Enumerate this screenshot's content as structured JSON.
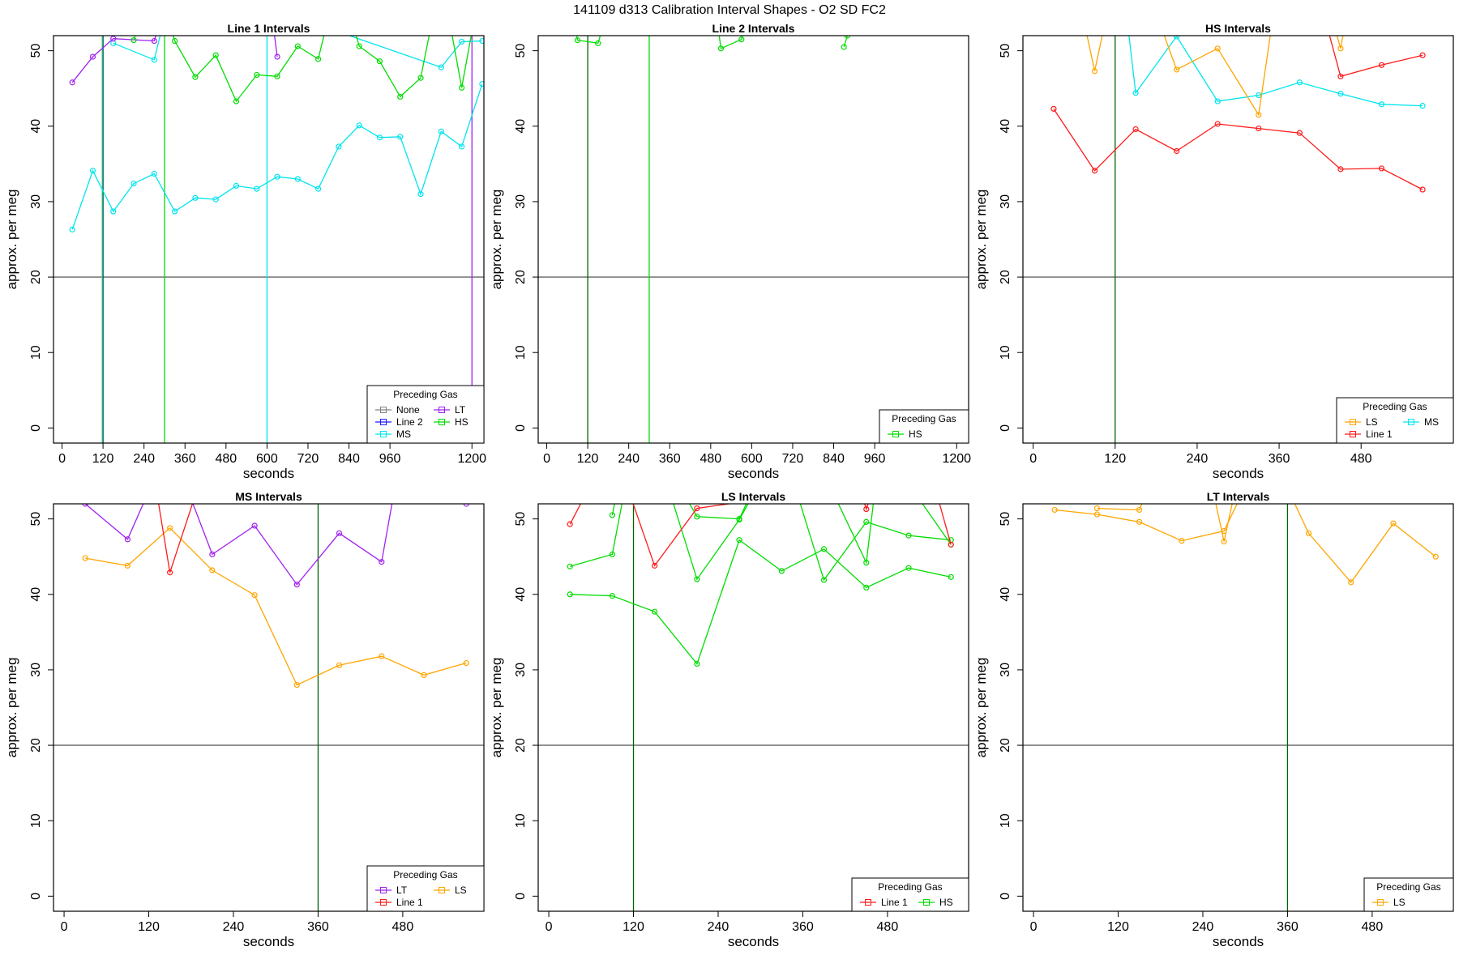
{
  "figure": {
    "title": "141109   d313   Calibration Interval Shapes - O2 SD FC2"
  },
  "colors": {
    "None": "#808080",
    "Line 2": "#1a1aff",
    "MS": "#00e5ee",
    "LT": "#a020f0",
    "HS": "#00dd00",
    "Line 1": "#ff1a1a",
    "LS": "#ffa500"
  },
  "chart_data": [
    {
      "type": "line",
      "title": "Line 1 Intervals",
      "xlabel": "seconds",
      "ylabel": "approx. per meg",
      "xlim": [
        -25,
        1235
      ],
      "ylim": [
        -2,
        52
      ],
      "xticks": [
        0,
        120,
        240,
        360,
        480,
        600,
        720,
        840,
        960,
        1200
      ],
      "yticks": [
        0,
        10,
        20,
        30,
        40,
        50
      ],
      "hline": 20,
      "vlines": [
        {
          "x": 120,
          "color": "Line 2"
        },
        {
          "x": 118,
          "color": "HS"
        },
        {
          "x": 300,
          "color": "HS"
        },
        {
          "x": 600,
          "color": "MS"
        },
        {
          "x": 1200,
          "color": "LT"
        }
      ],
      "legend": {
        "title": "Preceding Gas",
        "position": "bottom-right",
        "columns": 2,
        "entries": [
          "None",
          "LT",
          "Line 2",
          "HS",
          "MS"
        ]
      },
      "series": [
        {
          "name": "MS",
          "x": [
            30,
            90,
            150,
            210,
            270,
            330,
            390,
            450,
            510,
            570,
            630,
            690,
            750,
            810,
            870,
            930,
            990,
            1050,
            1110,
            1170,
            1230
          ],
          "y": [
            26.3,
            34.1,
            28.7,
            32.4,
            33.7,
            28.7,
            30.5,
            30.3,
            32.1,
            31.7,
            33.3,
            33.0,
            31.7,
            37.3,
            40.1,
            38.5,
            38.6,
            31.0,
            39.3,
            37.3,
            45.6
          ]
        },
        {
          "name": "MS",
          "x": [
            150,
            270,
            330,
            1110,
            1170,
            1230
          ],
          "y": [
            51.0,
            48.8,
            60.0,
            47.8,
            51.2,
            51.3
          ]
        },
        {
          "name": "LT",
          "x": [
            30,
            90,
            150,
            270,
            330,
            600,
            630
          ],
          "y": [
            45.8,
            49.2,
            51.6,
            51.3,
            60.0,
            60.0,
            49.2
          ]
        },
        {
          "name": "HS",
          "x": [
            210,
            270,
            330,
            390,
            450,
            510,
            570,
            630,
            690,
            750,
            810,
            870,
            930,
            990,
            1050,
            1110,
            1170,
            1230
          ],
          "y": [
            51.4,
            60.0,
            51.3,
            46.5,
            49.4,
            43.3,
            46.8,
            46.6,
            50.6,
            48.9,
            60.0,
            50.6,
            48.6,
            43.9,
            46.4,
            60.0,
            45.1,
            60.0
          ]
        }
      ]
    },
    {
      "type": "line",
      "title": "Line 2 Intervals",
      "xlabel": "seconds",
      "ylabel": "approx. per meg",
      "xlim": [
        -25,
        1235
      ],
      "ylim": [
        -2,
        52
      ],
      "xticks": [
        0,
        120,
        240,
        360,
        480,
        600,
        720,
        840,
        960,
        1200
      ],
      "yticks": [
        0,
        10,
        20,
        30,
        40,
        50
      ],
      "hline": 20,
      "vlines": [
        {
          "x": 120,
          "color": "dark"
        },
        {
          "x": 300,
          "color": "HS"
        }
      ],
      "legend": {
        "title": "Preceding Gas",
        "position": "bottom-right",
        "columns": 1,
        "entries": [
          "HS"
        ]
      },
      "series": [
        {
          "name": "HS",
          "x": [
            60,
            90,
            150,
            210
          ],
          "y": [
            60.0,
            51.4,
            51.0,
            60.0
          ]
        },
        {
          "name": "HS",
          "x": [
            480,
            510,
            570,
            630
          ],
          "y": [
            60.0,
            50.3,
            51.5,
            60.0
          ]
        },
        {
          "name": "HS",
          "x": [
            870,
            880,
            890
          ],
          "y": [
            50.5,
            52.0,
            60.0
          ]
        }
      ]
    },
    {
      "type": "line",
      "title": "HS Intervals",
      "xlabel": "seconds",
      "ylabel": "approx. per meg",
      "xlim": [
        -15,
        615
      ],
      "ylim": [
        -2,
        52
      ],
      "xticks": [
        0,
        120,
        240,
        360,
        480
      ],
      "yticks": [
        0,
        10,
        20,
        30,
        40,
        50
      ],
      "hline": 20,
      "vlines": [
        {
          "x": 120,
          "color": "dark"
        }
      ],
      "legend": {
        "title": "Preceding Gas",
        "position": "bottom-right",
        "columns": 2,
        "entries": [
          "LS",
          "MS",
          "Line 1"
        ]
      },
      "series": [
        {
          "name": "Line 1",
          "x": [
            30,
            90,
            150,
            210,
            270,
            330,
            390,
            450,
            510,
            570
          ],
          "y": [
            42.3,
            34.1,
            39.6,
            36.7,
            40.3,
            39.7,
            39.1,
            34.3,
            34.4,
            31.6
          ]
        },
        {
          "name": "Line 1",
          "x": [
            410,
            450,
            510,
            570
          ],
          "y": [
            60.0,
            46.6,
            48.1,
            49.4
          ]
        },
        {
          "name": "MS",
          "x": [
            130,
            150,
            210,
            270,
            330,
            390,
            450,
            510,
            570
          ],
          "y": [
            60.0,
            44.4,
            51.9,
            43.3,
            44.1,
            45.8,
            44.3,
            42.9,
            42.7
          ]
        },
        {
          "name": "LS",
          "x": [
            60,
            90,
            120,
            160,
            210,
            270,
            330,
            360,
            420,
            450,
            470
          ],
          "y": [
            60.0,
            47.3,
            60.0,
            60.0,
            47.5,
            50.3,
            41.5,
            60.0,
            60.0,
            50.3,
            60.0
          ]
        }
      ]
    },
    {
      "type": "line",
      "title": "MS Intervals",
      "xlabel": "seconds",
      "ylabel": "approx. per meg",
      "xlim": [
        -15,
        595
      ],
      "ylim": [
        -2,
        52
      ],
      "xticks": [
        0,
        120,
        240,
        360,
        480
      ],
      "yticks": [
        0,
        10,
        20,
        30,
        40,
        50
      ],
      "hline": 20,
      "vlines": [
        {
          "x": 360,
          "color": "dark"
        }
      ],
      "legend": {
        "title": "Preceding Gas",
        "position": "bottom-right",
        "columns": 2,
        "entries": [
          "LT",
          "LS",
          "Line 1"
        ]
      },
      "series": [
        {
          "name": "LS",
          "x": [
            30,
            90,
            150,
            210,
            270,
            330,
            390,
            450,
            510,
            570
          ],
          "y": [
            44.8,
            43.8,
            48.8,
            43.2,
            39.9,
            28.0,
            30.6,
            31.8,
            29.3,
            30.9
          ]
        },
        {
          "name": "LT",
          "x": [
            30,
            90,
            150,
            210,
            270,
            330,
            390,
            450,
            480,
            570
          ],
          "y": [
            52.0,
            47.3,
            60.0,
            45.3,
            49.1,
            41.3,
            48.1,
            44.3,
            60.0,
            52.0
          ]
        },
        {
          "name": "Line 1",
          "x": [
            120,
            150,
            210
          ],
          "y": [
            60.0,
            42.9,
            60.0
          ]
        }
      ]
    },
    {
      "type": "line",
      "title": "LS Intervals",
      "xlabel": "seconds",
      "ylabel": "approx. per meg",
      "xlim": [
        -15,
        595
      ],
      "ylim": [
        -2,
        52
      ],
      "xticks": [
        0,
        120,
        240,
        360,
        480
      ],
      "yticks": [
        0,
        10,
        20,
        30,
        40,
        50
      ],
      "hline": 20,
      "vlines": [
        {
          "x": 120,
          "color": "dark"
        }
      ],
      "legend": {
        "title": "Preceding Gas",
        "position": "bottom-right",
        "columns": 2,
        "entries": [
          "Line 1",
          "HS"
        ]
      },
      "series": [
        {
          "name": "HS",
          "x": [
            30,
            90,
            150,
            210,
            270,
            330,
            390,
            450,
            510,
            570
          ],
          "y": [
            40.0,
            39.8,
            37.7,
            30.8,
            47.2,
            43.1,
            46.0,
            40.9,
            43.5,
            42.3
          ]
        },
        {
          "name": "HS",
          "x": [
            30,
            90,
            120,
            150,
            210,
            270,
            330,
            390,
            450,
            510,
            570
          ],
          "y": [
            43.7,
            45.3,
            60.0,
            60.0,
            42.0,
            49.9,
            60.0,
            41.9,
            49.6,
            47.8,
            47.2
          ]
        },
        {
          "name": "HS",
          "x": [
            90,
            110,
            150,
            210,
            270,
            320,
            370,
            450,
            470,
            570
          ],
          "y": [
            50.5,
            60.0,
            60.0,
            50.3,
            50.0,
            60.0,
            60.0,
            44.2,
            60.0,
            46.6
          ]
        },
        {
          "name": "Line 1",
          "x": [
            30,
            90,
            150,
            210,
            270,
            330
          ],
          "y": [
            49.3,
            60.0,
            43.8,
            51.4,
            52.2,
            60.0
          ]
        },
        {
          "name": "Line 1",
          "x": [
            420,
            450,
            480,
            530,
            570
          ],
          "y": [
            60.0,
            51.3,
            60.0,
            60.0,
            46.6
          ]
        }
      ]
    },
    {
      "type": "line",
      "title": "LT Intervals",
      "xlabel": "seconds",
      "ylabel": "approx. per meg",
      "xlim": [
        -15,
        595
      ],
      "ylim": [
        -2,
        52
      ],
      "xticks": [
        0,
        120,
        240,
        360,
        480
      ],
      "yticks": [
        0,
        10,
        20,
        30,
        40,
        50
      ],
      "hline": 20,
      "vlines": [
        {
          "x": 360,
          "color": "dark"
        }
      ],
      "legend": {
        "title": "Preceding Gas",
        "position": "bottom-right",
        "columns": 1,
        "entries": [
          "LS"
        ]
      },
      "series": [
        {
          "name": "LS",
          "x": [
            30,
            90,
            150,
            210,
            270,
            330,
            390,
            450,
            510,
            570
          ],
          "y": [
            51.2,
            50.6,
            49.6,
            47.1,
            48.4,
            60.0,
            48.1,
            41.6,
            49.4,
            45.0
          ]
        },
        {
          "name": "LS",
          "x": [
            90,
            150,
            190,
            240,
            270,
            300
          ],
          "y": [
            51.4,
            51.2,
            60.0,
            60.0,
            47.0,
            60.0
          ]
        }
      ]
    }
  ]
}
